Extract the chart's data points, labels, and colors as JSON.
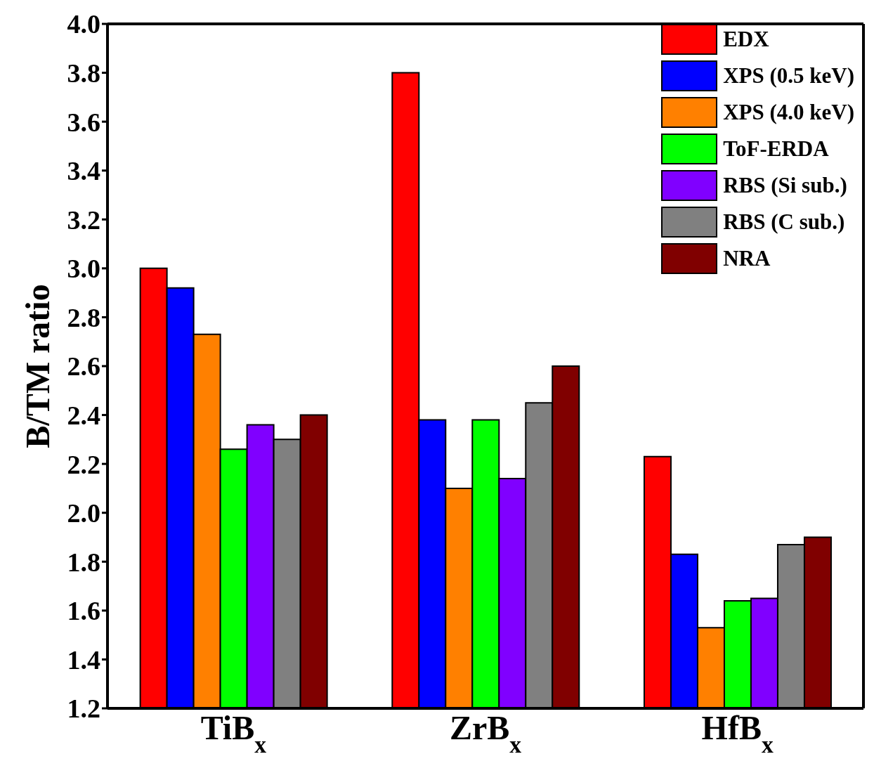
{
  "chart_data": {
    "type": "bar",
    "ylabel": "B/TM ratio",
    "categories": [
      "TiB$_{x}$",
      "ZrB$_{x}$",
      "HfB$_{x}$"
    ],
    "series": [
      {
        "name": "EDX",
        "color": "#ff0000",
        "values": [
          3.0,
          3.8,
          2.23
        ]
      },
      {
        "name": "XPS (0.5 keV)",
        "color": "#0000ff",
        "values": [
          2.92,
          2.38,
          1.83
        ]
      },
      {
        "name": "XPS (4.0 keV)",
        "color": "#ff8000",
        "values": [
          2.73,
          2.1,
          1.53
        ]
      },
      {
        "name": "ToF-ERDA",
        "color": "#00ff00",
        "values": [
          2.26,
          2.38,
          1.64
        ]
      },
      {
        "name": "RBS (Si sub.)",
        "color": "#8000ff",
        "values": [
          2.36,
          2.14,
          1.65
        ]
      },
      {
        "name": "RBS (C sub.)",
        "color": "#808080",
        "values": [
          2.3,
          2.45,
          1.87
        ]
      },
      {
        "name": "NRA",
        "color": "#800000",
        "values": [
          2.4,
          2.6,
          1.9
        ]
      }
    ],
    "ylim": [
      1.2,
      4.0
    ],
    "yticks": [
      1.2,
      1.4,
      1.6,
      1.8,
      {
        "value": 2,
        "label": "2.0"
      },
      2.2,
      2.4,
      2.6,
      2.8,
      {
        "value": 3,
        "label": "3.0"
      },
      3.2,
      3.4,
      3.6,
      3.8,
      {
        "value": 4,
        "label": "4.0"
      }
    ],
    "grid": false,
    "legend": "top right"
  }
}
